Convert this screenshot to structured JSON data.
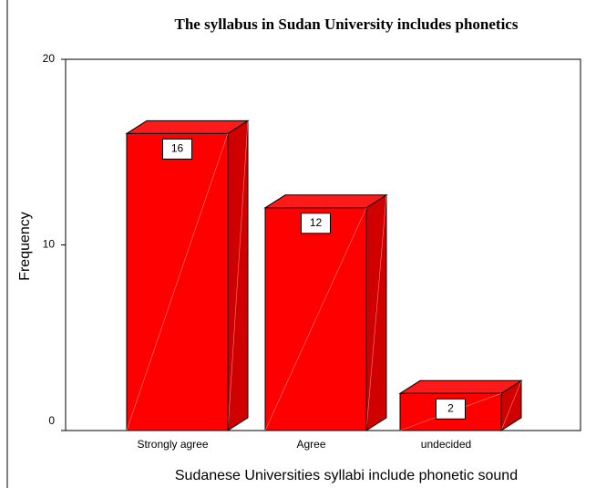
{
  "chart_data": {
    "type": "bar",
    "title": "The syllabus in Sudan University includes phonetics",
    "xlabel": "Sudanese Universities syllabi include phonetic sound",
    "ylabel": "Frequency",
    "categories": [
      "Strongly agree",
      "Agree",
      "undecided"
    ],
    "values": [
      16,
      12,
      2
    ],
    "color": "#ff0000",
    "ylim": [
      0,
      20
    ],
    "yticks": [
      0,
      10,
      20
    ]
  }
}
